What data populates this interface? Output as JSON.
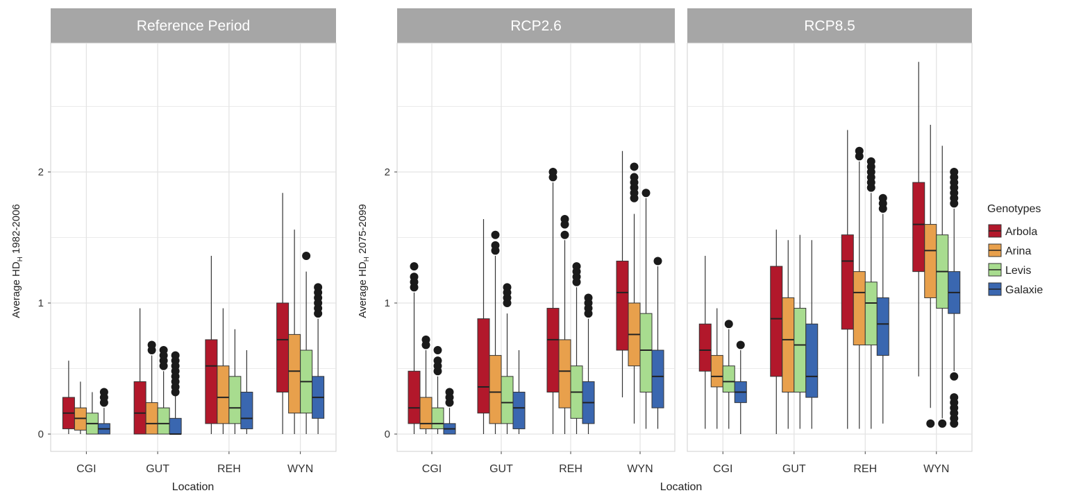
{
  "panels": [
    {
      "id": "ref",
      "strip_label": "Reference Period",
      "ylabel_main": "Average HD",
      "ylabel_sub": "H",
      "ylabel_tail": " 1982-2006"
    },
    {
      "id": "rcp26",
      "strip_label": "RCP2.6",
      "ylabel_main": "Average HD",
      "ylabel_sub": "H",
      "ylabel_tail": " 2075-2099"
    },
    {
      "id": "rcp85",
      "strip_label": "RCP8.5"
    }
  ],
  "xlabel": "Location",
  "legend": {
    "title": "Genotypes",
    "items": [
      {
        "label": "Arbola",
        "color": "#b2182b"
      },
      {
        "label": "Arina",
        "color": "#e8a04c"
      },
      {
        "label": "Levis",
        "color": "#a8dc8f"
      },
      {
        "label": "Galaxie",
        "color": "#3a67b0"
      }
    ]
  },
  "chart_data": {
    "type": "boxplot",
    "categories": [
      "CGI",
      "GUT",
      "REH",
      "WYN"
    ],
    "ylim": [
      -0.12,
      3.2
    ],
    "y_ticks": [
      "0",
      "1",
      "2"
    ],
    "grid": true,
    "legend_position": "right",
    "facets": [
      {
        "label": "Reference Period",
        "boxes": {
          "CGI": [
            {
              "genotype": "Arbola",
              "min": 0,
              "q1": 0.04,
              "median": 0.16,
              "q3": 0.28,
              "max": 0.56,
              "outliers": []
            },
            {
              "genotype": "Arina",
              "min": 0,
              "q1": 0.03,
              "median": 0.12,
              "q3": 0.2,
              "max": 0.4,
              "outliers": []
            },
            {
              "genotype": "Levis",
              "min": 0,
              "q1": 0,
              "median": 0.08,
              "q3": 0.16,
              "max": 0.32,
              "outliers": []
            },
            {
              "genotype": "Galaxie",
              "min": 0,
              "q1": 0,
              "median": 0.04,
              "q3": 0.08,
              "max": 0.2,
              "outliers": [
                0.24,
                0.28,
                0.32
              ]
            }
          ],
          "GUT": [
            {
              "genotype": "Arbola",
              "min": 0,
              "q1": 0,
              "median": 0.16,
              "q3": 0.4,
              "max": 0.96,
              "outliers": []
            },
            {
              "genotype": "Arina",
              "min": 0,
              "q1": 0,
              "median": 0.08,
              "q3": 0.24,
              "max": 0.6,
              "outliers": [
                0.64,
                0.68
              ]
            },
            {
              "genotype": "Levis",
              "min": 0,
              "q1": 0,
              "median": 0.08,
              "q3": 0.2,
              "max": 0.48,
              "outliers": [
                0.52,
                0.56,
                0.6,
                0.64
              ]
            },
            {
              "genotype": "Galaxie",
              "min": 0,
              "q1": 0,
              "median": 0,
              "q3": 0.12,
              "max": 0.3,
              "outliers": [
                0.32,
                0.36,
                0.4,
                0.44,
                0.48,
                0.52,
                0.56,
                0.6
              ]
            }
          ],
          "REH": [
            {
              "genotype": "Arbola",
              "min": 0,
              "q1": 0.08,
              "median": 0.52,
              "q3": 0.72,
              "max": 1.36,
              "outliers": []
            },
            {
              "genotype": "Arina",
              "min": 0,
              "q1": 0.08,
              "median": 0.28,
              "q3": 0.52,
              "max": 0.96,
              "outliers": []
            },
            {
              "genotype": "Levis",
              "min": 0,
              "q1": 0.08,
              "median": 0.2,
              "q3": 0.44,
              "max": 0.8,
              "outliers": []
            },
            {
              "genotype": "Galaxie",
              "min": 0,
              "q1": 0.04,
              "median": 0.12,
              "q3": 0.32,
              "max": 0.64,
              "outliers": []
            }
          ],
          "WYN": [
            {
              "genotype": "Arbola",
              "min": 0,
              "q1": 0.32,
              "median": 0.72,
              "q3": 1.0,
              "max": 1.84,
              "outliers": []
            },
            {
              "genotype": "Arina",
              "min": 0,
              "q1": 0.16,
              "median": 0.48,
              "q3": 0.76,
              "max": 1.56,
              "outliers": []
            },
            {
              "genotype": "Levis",
              "min": 0,
              "q1": 0.16,
              "median": 0.4,
              "q3": 0.64,
              "max": 1.24,
              "outliers": [
                1.36
              ]
            },
            {
              "genotype": "Galaxie",
              "min": 0,
              "q1": 0.12,
              "median": 0.28,
              "q3": 0.44,
              "max": 0.88,
              "outliers": [
                0.92,
                0.96,
                1.0,
                1.04,
                1.08,
                1.12
              ]
            }
          ]
        }
      },
      {
        "label": "RCP2.6",
        "boxes": {
          "CGI": [
            {
              "genotype": "Arbola",
              "min": 0,
              "q1": 0.08,
              "median": 0.2,
              "q3": 0.48,
              "max": 1.08,
              "outliers": [
                1.12,
                1.16,
                1.2,
                1.28
              ]
            },
            {
              "genotype": "Arina",
              "min": 0,
              "q1": 0.04,
              "median": 0.08,
              "q3": 0.28,
              "max": 0.64,
              "outliers": [
                0.68,
                0.72
              ]
            },
            {
              "genotype": "Levis",
              "min": 0,
              "q1": 0.04,
              "median": 0.08,
              "q3": 0.2,
              "max": 0.44,
              "outliers": [
                0.48,
                0.52,
                0.56,
                0.64
              ]
            },
            {
              "genotype": "Galaxie",
              "min": 0,
              "q1": 0,
              "median": 0.04,
              "q3": 0.08,
              "max": 0.2,
              "outliers": [
                0.24,
                0.28,
                0.32
              ]
            }
          ],
          "GUT": [
            {
              "genotype": "Arbola",
              "min": 0,
              "q1": 0.16,
              "median": 0.36,
              "q3": 0.88,
              "max": 1.64,
              "outliers": []
            },
            {
              "genotype": "Arina",
              "min": 0,
              "q1": 0.08,
              "median": 0.32,
              "q3": 0.6,
              "max": 1.36,
              "outliers": [
                1.4,
                1.44,
                1.52
              ]
            },
            {
              "genotype": "Levis",
              "min": 0,
              "q1": 0.08,
              "median": 0.24,
              "q3": 0.44,
              "max": 0.92,
              "outliers": [
                1.0,
                1.04,
                1.08,
                1.12
              ]
            },
            {
              "genotype": "Galaxie",
              "min": 0,
              "q1": 0.04,
              "median": 0.2,
              "q3": 0.32,
              "max": 0.64,
              "outliers": []
            }
          ],
          "REH": [
            {
              "genotype": "Arbola",
              "min": 0,
              "q1": 0.32,
              "median": 0.72,
              "q3": 0.96,
              "max": 1.92,
              "outliers": [
                1.96,
                2.0
              ]
            },
            {
              "genotype": "Arina",
              "min": 0,
              "q1": 0.2,
              "median": 0.48,
              "q3": 0.72,
              "max": 1.48,
              "outliers": [
                1.52,
                1.6,
                1.64
              ]
            },
            {
              "genotype": "Levis",
              "min": 0,
              "q1": 0.12,
              "median": 0.32,
              "q3": 0.52,
              "max": 1.12,
              "outliers": [
                1.16,
                1.2,
                1.24,
                1.28
              ]
            },
            {
              "genotype": "Galaxie",
              "min": 0,
              "q1": 0.08,
              "median": 0.24,
              "q3": 0.4,
              "max": 0.88,
              "outliers": [
                0.92,
                0.96,
                1.0,
                1.04
              ]
            }
          ],
          "WYN": [
            {
              "genotype": "Arbola",
              "min": 0.28,
              "q1": 0.64,
              "median": 1.08,
              "q3": 1.32,
              "max": 2.16,
              "outliers": []
            },
            {
              "genotype": "Arina",
              "min": 0.08,
              "q1": 0.52,
              "median": 0.76,
              "q3": 1.0,
              "max": 1.68,
              "outliers": [
                1.8,
                1.84,
                1.88,
                1.92,
                1.96,
                2.04
              ]
            },
            {
              "genotype": "Levis",
              "min": 0.04,
              "q1": 0.32,
              "median": 0.64,
              "q3": 0.92,
              "max": 1.8,
              "outliers": [
                1.84
              ]
            },
            {
              "genotype": "Galaxie",
              "min": 0.04,
              "q1": 0.2,
              "median": 0.44,
              "q3": 0.64,
              "max": 1.28,
              "outliers": [
                1.32
              ]
            }
          ]
        }
      },
      {
        "label": "RCP8.5",
        "boxes": {
          "CGI": [
            {
              "genotype": "Arbola",
              "min": 0.04,
              "q1": 0.48,
              "median": 0.64,
              "q3": 0.84,
              "max": 1.36,
              "outliers": []
            },
            {
              "genotype": "Arina",
              "min": 0.04,
              "q1": 0.36,
              "median": 0.44,
              "q3": 0.6,
              "max": 0.96,
              "outliers": []
            },
            {
              "genotype": "Levis",
              "min": 0.04,
              "q1": 0.32,
              "median": 0.4,
              "q3": 0.52,
              "max": 0.8,
              "outliers": [
                0.84
              ]
            },
            {
              "genotype": "Galaxie",
              "min": 0,
              "q1": 0.24,
              "median": 0.32,
              "q3": 0.4,
              "max": 0.64,
              "outliers": [
                0.68
              ]
            }
          ],
          "GUT": [
            {
              "genotype": "Arbola",
              "min": 0,
              "q1": 0.44,
              "median": 0.88,
              "q3": 1.28,
              "max": 1.56,
              "outliers": []
            },
            {
              "genotype": "Arina",
              "min": 0.04,
              "q1": 0.32,
              "median": 0.72,
              "q3": 1.04,
              "max": 1.48,
              "outliers": []
            },
            {
              "genotype": "Levis",
              "min": 0.04,
              "q1": 0.32,
              "median": 0.68,
              "q3": 0.96,
              "max": 1.52,
              "outliers": []
            },
            {
              "genotype": "Galaxie",
              "min": 0.04,
              "q1": 0.28,
              "median": 0.44,
              "q3": 0.84,
              "max": 1.48,
              "outliers": []
            }
          ],
          "REH": [
            {
              "genotype": "Arbola",
              "min": 0.04,
              "q1": 0.8,
              "median": 1.32,
              "q3": 1.52,
              "max": 2.32,
              "outliers": []
            },
            {
              "genotype": "Arina",
              "min": 0.04,
              "q1": 0.68,
              "median": 1.08,
              "q3": 1.24,
              "max": 2.08,
              "outliers": [
                2.12,
                2.16
              ]
            },
            {
              "genotype": "Levis",
              "min": 0.04,
              "q1": 0.68,
              "median": 1.0,
              "q3": 1.16,
              "max": 1.84,
              "outliers": [
                1.88,
                1.92,
                1.96,
                2.0,
                2.04,
                2.08
              ]
            },
            {
              "genotype": "Galaxie",
              "min": 0.08,
              "q1": 0.6,
              "median": 0.84,
              "q3": 1.04,
              "max": 1.68,
              "outliers": [
                1.72,
                1.76,
                1.8
              ]
            }
          ],
          "WYN": [
            {
              "genotype": "Arbola",
              "min": 0.44,
              "q1": 1.24,
              "median": 1.6,
              "q3": 1.92,
              "max": 2.84,
              "outliers": []
            },
            {
              "genotype": "Arina",
              "min": 0.2,
              "q1": 1.04,
              "median": 1.4,
              "q3": 1.6,
              "max": 2.36,
              "outliers": [
                0.08
              ]
            },
            {
              "genotype": "Levis",
              "min": 0.12,
              "q1": 0.96,
              "median": 1.24,
              "q3": 1.52,
              "max": 2.2,
              "outliers": [
                0.08
              ]
            },
            {
              "genotype": "Galaxie",
              "min": 0.48,
              "q1": 0.92,
              "median": 1.08,
              "q3": 1.24,
              "max": 1.72,
              "outliers": [
                0.08,
                0.12,
                0.16,
                0.2,
                0.24,
                0.28,
                0.44,
                1.76,
                1.8,
                1.84,
                1.88,
                1.92,
                1.96,
                2.0
              ]
            }
          ]
        }
      }
    ]
  }
}
